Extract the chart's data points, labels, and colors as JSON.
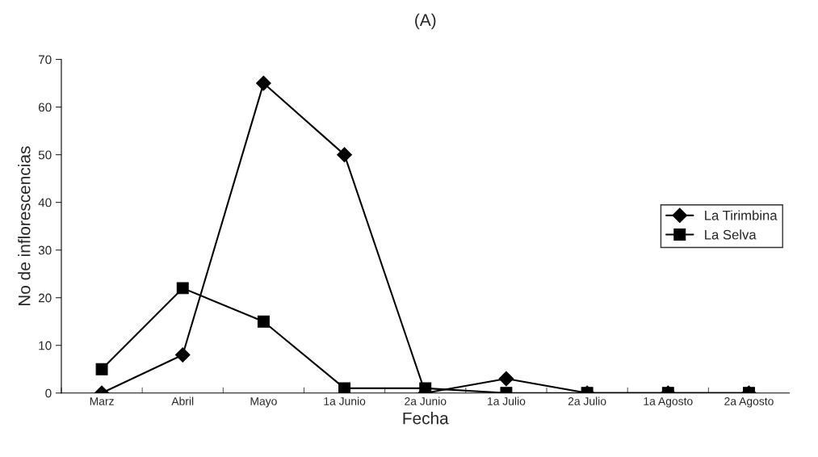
{
  "chart_data": {
    "type": "line",
    "title": "(A)",
    "xlabel": "Fecha",
    "ylabel": "No de inflorescencias",
    "categories": [
      "Marz",
      "Abril",
      "Mayo",
      "1a Junio",
      "2a Junio",
      "1a Julio",
      "2a Julio",
      "1a Agosto",
      "2a Agosto"
    ],
    "series": [
      {
        "name": "La Tirimbina",
        "color": "#000000",
        "marker": "diamond",
        "values": [
          0,
          8,
          65,
          50,
          0,
          3,
          0,
          0,
          0
        ]
      },
      {
        "name": "La Selva",
        "color": "#000000",
        "marker": "square",
        "values": [
          5,
          22,
          15,
          1,
          1,
          0,
          0,
          0,
          0
        ]
      }
    ],
    "ylim": [
      0,
      70
    ],
    "yticks": [
      0,
      10,
      20,
      30,
      40,
      50,
      60,
      70
    ],
    "grid": false,
    "legend": "center right",
    "line_style": "solid"
  }
}
